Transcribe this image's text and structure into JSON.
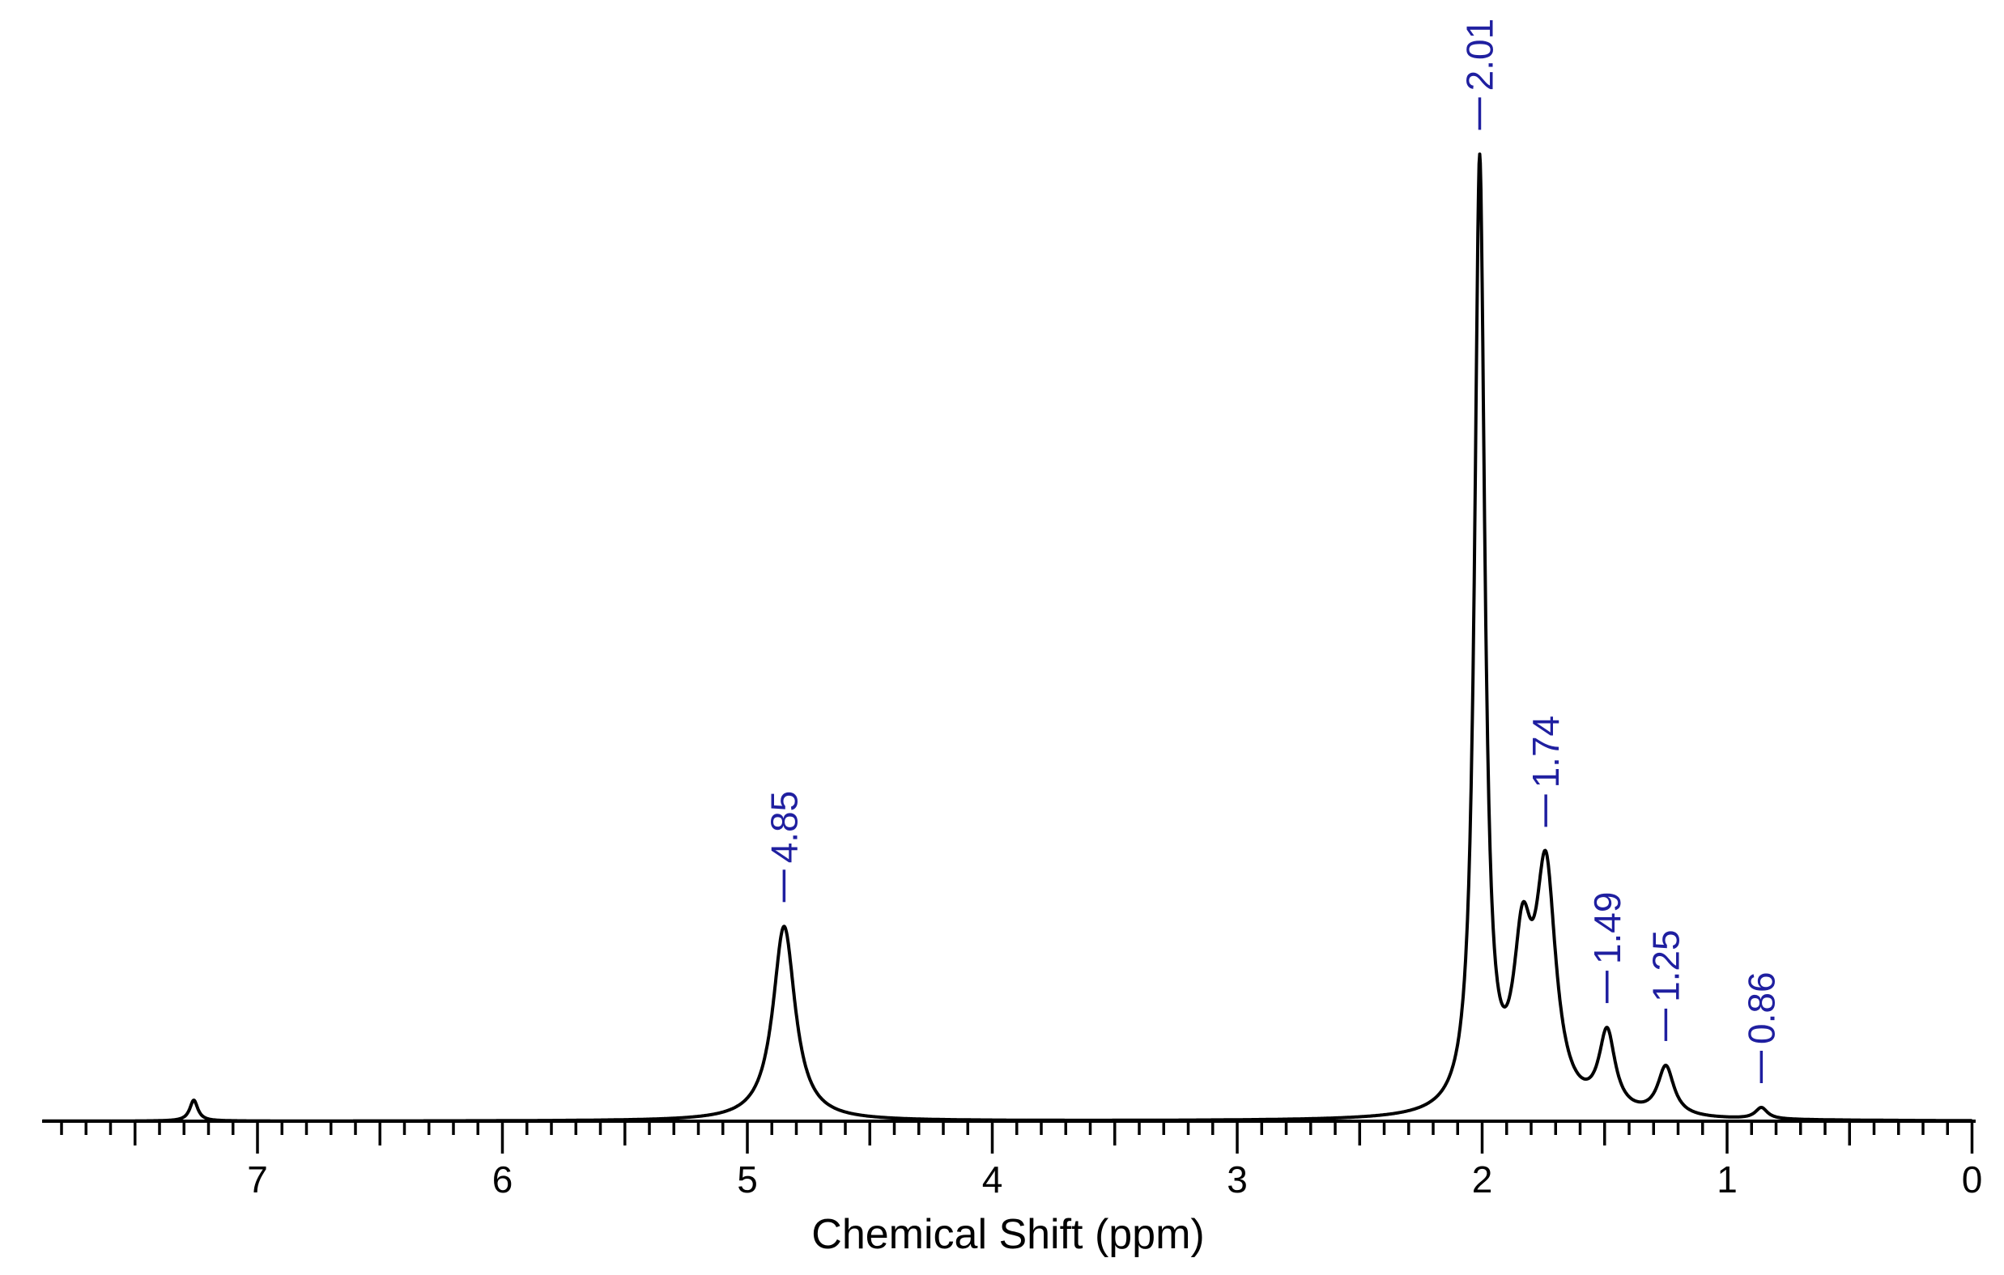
{
  "chart_data": {
    "type": "line",
    "title": "",
    "xlabel": "Chemical Shift (ppm)",
    "ylabel": "",
    "xlim": [
      7.9,
      0
    ],
    "x_reversed": true,
    "ylim": [
      0,
      1.0
    ],
    "grid": false,
    "x_ticks": [
      7,
      6,
      5,
      4,
      3,
      2,
      1,
      0
    ],
    "x_tick_labels": [
      "7",
      "6",
      "5",
      "4",
      "3",
      "2",
      "1",
      "0"
    ],
    "x_minor_tick_step": 0.1,
    "x_mid_tick_step": 0.5,
    "series": [
      {
        "line_color": "#000000",
        "peaks": [
          {
            "x": 7.26,
            "y": 0.022,
            "width": 0.02
          },
          {
            "x": 4.85,
            "y": 0.205,
            "width": 0.055
          },
          {
            "x": 2.01,
            "y": 1.0,
            "width": 0.025
          },
          {
            "x": 1.835,
            "y": 0.155,
            "width": 0.045
          },
          {
            "x": 1.74,
            "y": 0.245,
            "width": 0.05
          },
          {
            "x": 1.49,
            "y": 0.083,
            "width": 0.04
          },
          {
            "x": 1.25,
            "y": 0.052,
            "width": 0.04
          },
          {
            "x": 0.86,
            "y": 0.012,
            "width": 0.03
          }
        ]
      }
    ],
    "peak_labels": [
      "2.01",
      "1.74",
      "4.85",
      "1.49",
      "1.25",
      "0.86"
    ],
    "peak_label_color": "#1f1fa0"
  }
}
